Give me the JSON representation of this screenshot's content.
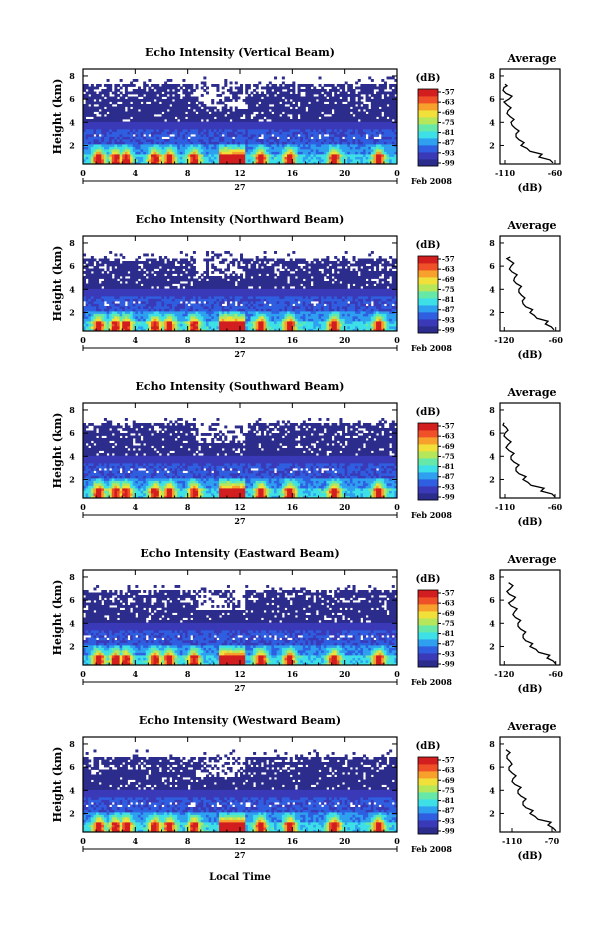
{
  "figure": {
    "x_axis_label": "Local Time",
    "date_label": "Feb 2008",
    "day_label": "27",
    "cbar_unit": "(dB)",
    "avg_title": "Average",
    "avg_xlabel": "(dB)"
  },
  "colormap": [
    "#2c2c8c",
    "#3a3ab8",
    "#2f5fe0",
    "#2fa0f0",
    "#3ee0e8",
    "#66e8a8",
    "#b6e65a",
    "#f2e03a",
    "#f8a02c",
    "#f05028",
    "#d21e1e"
  ],
  "chart_data": [
    {
      "type": "heatmap",
      "title": "Echo Intensity (Vertical Beam)",
      "ylabel": "Height (km)",
      "x_ticks": [
        "0",
        "4",
        "8",
        "12",
        "16",
        "20",
        "0"
      ],
      "x_range_hours": [
        0,
        24
      ],
      "y_ticks": [
        "2",
        "4",
        "6",
        "8"
      ],
      "y_range_km": [
        0.4,
        8.6
      ],
      "colorbar_ticks": [
        "-57",
        "-63",
        "-69",
        "-75",
        "-81",
        "-87",
        "-93",
        "-99"
      ],
      "signal_top_km": 7.3,
      "peak_hours": [
        1.2,
        2.5,
        3.3,
        5.5,
        6.6,
        8.5,
        11.3,
        13.6,
        15.8,
        19.2,
        22.6
      ],
      "average_profile": {
        "x_ticks": [
          "-110",
          "-60"
        ],
        "x_range": [
          -115,
          -55
        ],
        "y_ticks": [
          "2",
          "4",
          "6",
          "8"
        ],
        "height_km": [
          0.5,
          1.0,
          1.5,
          2.0,
          2.5,
          3.0,
          3.5,
          4.0,
          4.5,
          5.0,
          5.5,
          6.0,
          6.5,
          7.0,
          7.3
        ],
        "value_db": [
          -62,
          -76,
          -85,
          -94,
          -96,
          -99,
          -100,
          -104,
          -105,
          -107,
          -108,
          -106,
          -109,
          -111,
          -110
        ]
      }
    },
    {
      "type": "heatmap",
      "title": "Echo Intensity (Northward Beam)",
      "ylabel": "Height (km)",
      "x_ticks": [
        "0",
        "4",
        "8",
        "12",
        "16",
        "20",
        "0"
      ],
      "x_range_hours": [
        0,
        24
      ],
      "y_ticks": [
        "2",
        "4",
        "6",
        "8"
      ],
      "y_range_km": [
        0.4,
        8.6
      ],
      "colorbar_ticks": [
        "-57",
        "-63",
        "-69",
        "-75",
        "-81",
        "-87",
        "-93",
        "-99"
      ],
      "signal_top_km": 6.6,
      "peak_hours": [
        1.2,
        2.5,
        3.3,
        5.5,
        6.6,
        8.5,
        11.3,
        13.6,
        15.8,
        19.2,
        22.6
      ],
      "average_profile": {
        "x_ticks": [
          "-120",
          "-60"
        ],
        "x_range": [
          -125,
          -55
        ],
        "y_ticks": [
          "2",
          "4",
          "6",
          "8"
        ],
        "height_km": [
          0.5,
          1.0,
          1.5,
          2.0,
          2.5,
          3.0,
          3.5,
          4.0,
          4.5,
          5.0,
          5.5,
          6.0,
          6.5,
          6.8
        ],
        "value_db": [
          -62,
          -72,
          -82,
          -90,
          -95,
          -99,
          -100,
          -103,
          -106,
          -108,
          -111,
          -112,
          -114,
          -113
        ]
      }
    },
    {
      "type": "heatmap",
      "title": "Echo Intensity (Southward Beam)",
      "ylabel": "Height (km)",
      "x_ticks": [
        "0",
        "4",
        "8",
        "12",
        "16",
        "20",
        "0"
      ],
      "x_range_hours": [
        0,
        24
      ],
      "y_ticks": [
        "2",
        "4",
        "6",
        "8"
      ],
      "y_range_km": [
        0.4,
        8.6
      ],
      "colorbar_ticks": [
        "-57",
        "-63",
        "-69",
        "-75",
        "-81",
        "-87",
        "-93",
        "-99"
      ],
      "signal_top_km": 6.8,
      "peak_hours": [
        1.2,
        2.5,
        3.3,
        5.5,
        6.6,
        8.5,
        11.3,
        13.6,
        15.8,
        19.2,
        22.6
      ],
      "average_profile": {
        "x_ticks": [
          "-110",
          "-60"
        ],
        "x_range": [
          -115,
          -55
        ],
        "y_ticks": [
          "2",
          "4",
          "6",
          "8"
        ],
        "height_km": [
          0.5,
          1.0,
          1.5,
          2.0,
          2.5,
          3.0,
          3.5,
          4.0,
          4.5,
          5.0,
          5.5,
          6.0,
          6.5,
          6.9
        ],
        "value_db": [
          -60,
          -74,
          -84,
          -92,
          -96,
          -99,
          -101,
          -104,
          -106,
          -107,
          -108,
          -110,
          -109,
          -111
        ]
      }
    },
    {
      "type": "heatmap",
      "title": "Echo Intensity (Eastward Beam)",
      "ylabel": "Height (km)",
      "x_ticks": [
        "0",
        "4",
        "8",
        "12",
        "16",
        "20",
        "0"
      ],
      "x_range_hours": [
        0,
        24
      ],
      "y_ticks": [
        "2",
        "4",
        "6",
        "8"
      ],
      "y_range_km": [
        0.4,
        8.6
      ],
      "colorbar_ticks": [
        "-57",
        "-63",
        "-69",
        "-75",
        "-81",
        "-87",
        "-93",
        "-99"
      ],
      "signal_top_km": 6.8,
      "peak_hours": [
        1.2,
        2.5,
        3.3,
        5.5,
        6.6,
        8.5,
        11.3,
        13.6,
        15.8,
        19.2,
        22.6
      ],
      "average_profile": {
        "x_ticks": [
          "-120",
          "-60"
        ],
        "x_range": [
          -125,
          -55
        ],
        "y_ticks": [
          "2",
          "4",
          "6",
          "8"
        ],
        "height_km": [
          0.5,
          1.0,
          1.5,
          2.0,
          2.5,
          3.0,
          3.5,
          4.0,
          4.5,
          5.0,
          5.5,
          6.0,
          6.5,
          7.0,
          7.5
        ],
        "value_db": [
          -60,
          -70,
          -80,
          -90,
          -95,
          -98,
          -101,
          -104,
          -107,
          -108,
          -112,
          -110,
          -114,
          -113,
          -115
        ]
      }
    },
    {
      "type": "heatmap",
      "title": "Echo Intensity (Westward Beam)",
      "ylabel": "Height (km)",
      "x_ticks": [
        "0",
        "4",
        "8",
        "12",
        "16",
        "20",
        "0"
      ],
      "x_range_hours": [
        0,
        24
      ],
      "y_ticks": [
        "2",
        "4",
        "6",
        "8"
      ],
      "y_range_km": [
        0.4,
        8.6
      ],
      "colorbar_ticks": [
        "-57",
        "-63",
        "-69",
        "-75",
        "-81",
        "-87",
        "-93",
        "-99"
      ],
      "signal_top_km": 6.9,
      "peak_hours": [
        1.2,
        2.5,
        3.3,
        5.5,
        6.6,
        8.5,
        11.3,
        13.6,
        15.8,
        19.2,
        22.6
      ],
      "average_profile": {
        "x_ticks": [
          "-110",
          "-70"
        ],
        "x_range": [
          -122,
          -62
        ],
        "y_ticks": [
          "2",
          "4",
          "6",
          "8"
        ],
        "height_km": [
          0.5,
          1.0,
          1.5,
          2.0,
          2.5,
          3.0,
          3.5,
          4.0,
          4.5,
          5.0,
          5.5,
          6.0,
          6.5,
          7.0,
          7.5
        ],
        "value_db": [
          -66,
          -74,
          -84,
          -92,
          -96,
          -99,
          -101,
          -104,
          -107,
          -109,
          -110,
          -113,
          -112,
          -115,
          -116
        ]
      }
    }
  ]
}
